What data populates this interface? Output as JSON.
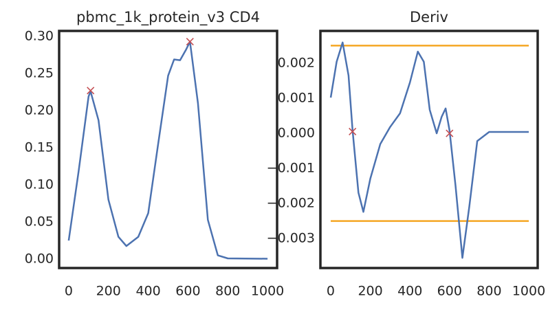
{
  "chart_data": [
    {
      "type": "line",
      "title": "pbmc_1k_protein_v3 CD4",
      "xlim": [
        -48,
        1048
      ],
      "ylim": [
        -0.012,
        0.3074
      ],
      "xticks": [
        0,
        200,
        400,
        600,
        800,
        1000
      ],
      "yticks": [
        {
          "value": 0,
          "label": "0.00"
        },
        {
          "value": 0.05,
          "label": "0.05"
        },
        {
          "value": 0.1,
          "label": "0.10"
        },
        {
          "value": 0.15,
          "label": "0.15"
        },
        {
          "value": 0.2,
          "label": "0.20"
        },
        {
          "value": 0.25,
          "label": "0.25"
        },
        {
          "value": 0.3,
          "label": "0.30"
        }
      ],
      "series": [
        {
          "color": "#4c72b0",
          "x": [
            0,
            50,
            100,
            110,
            150,
            200,
            250,
            290,
            350,
            400,
            450,
            500,
            530,
            560,
            590,
            610,
            650,
            700,
            750,
            800,
            1000
          ],
          "values": [
            0.025,
            0.118,
            0.219,
            0.226,
            0.187,
            0.08,
            0.03,
            0.0176,
            0.03,
            0.062,
            0.155,
            0.247,
            0.269,
            0.268,
            0.282,
            0.293,
            0.21,
            0.053,
            0.005,
            0.001,
            0.0005
          ]
        }
      ],
      "markers": {
        "color": "#c44e52",
        "x": [
          110,
          610
        ],
        "values": [
          0.227,
          0.293
        ]
      }
    },
    {
      "type": "line",
      "title": "Deriv",
      "xlim": [
        -52,
        1045
      ],
      "ylim": [
        -0.00384,
        0.00292
      ],
      "xticks": [
        0,
        200,
        400,
        600,
        800,
        1000
      ],
      "yticks": [
        {
          "value": -0.003,
          "label": "−0.003"
        },
        {
          "value": -0.002,
          "label": "−0.002"
        },
        {
          "value": -0.001,
          "label": "−0.001"
        },
        {
          "value": 0,
          "label": "0.000"
        },
        {
          "value": 0.001,
          "label": "0.001"
        },
        {
          "value": 0.002,
          "label": "0.002"
        }
      ],
      "series": [
        {
          "color": "#4c72b0",
          "x": [
            0,
            30,
            60,
            90,
            110,
            140,
            165,
            200,
            250,
            300,
            350,
            400,
            440,
            470,
            500,
            535,
            560,
            580,
            600,
            630,
            665,
            700,
            740,
            800,
            1000
          ],
          "values": [
            0.00102,
            0.00204,
            0.00259,
            0.00165,
            0.0001,
            -0.00169,
            -0.00224,
            -0.00129,
            -0.00031,
            0.00018,
            0.00057,
            0.00145,
            0.00233,
            0.00204,
            0.00067,
            0.0,
            0.00047,
            0.00071,
            8e-05,
            -0.00149,
            -0.00355,
            -0.00208,
            -0.00022,
            4e-05,
            4e-05
          ]
        }
      ],
      "markers": {
        "color": "#c44e52",
        "x": [
          110,
          600
        ],
        "values": [
          5e-05,
          0.0
        ]
      },
      "hlines": {
        "color": "#f5a623",
        "values": [
          0.0025,
          -0.0025
        ]
      }
    }
  ]
}
